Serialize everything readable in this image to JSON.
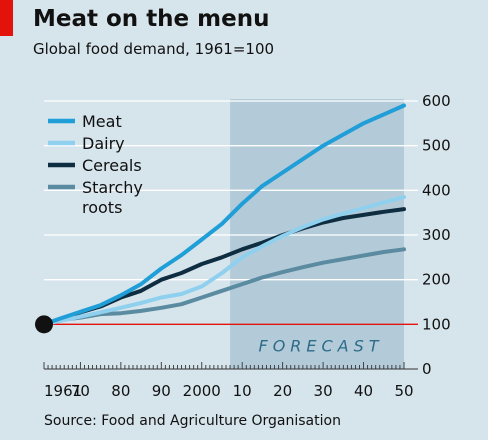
{
  "header": {
    "title": "Meat on the menu",
    "subtitle": "Global food demand, 1961=100"
  },
  "footer": {
    "source": "Source: Food and Agriculture Organisation"
  },
  "colors": {
    "background": "#d6e4ec",
    "forecast_band": "#b3cbd9",
    "baseline": "#e3120b",
    "gridline": "#ffffff",
    "brand_tag": "#e3120b"
  },
  "chart_data": {
    "type": "line",
    "title": "Meat on the menu",
    "subtitle": "Global food demand, 1961=100",
    "xlim": [
      1961,
      2050
    ],
    "ylim": [
      0,
      600
    ],
    "x_tick_labels": [
      {
        "x": 1961,
        "label": "1961"
      },
      {
        "x": 1970,
        "label": "70"
      },
      {
        "x": 1980,
        "label": "80"
      },
      {
        "x": 1990,
        "label": "90"
      },
      {
        "x": 2000,
        "label": "2000"
      },
      {
        "x": 2010,
        "label": "10"
      },
      {
        "x": 2020,
        "label": "20"
      },
      {
        "x": 2030,
        "label": "30"
      },
      {
        "x": 2040,
        "label": "40"
      },
      {
        "x": 2050,
        "label": "50"
      }
    ],
    "y_ticks": [
      0,
      100,
      200,
      300,
      400,
      500,
      600
    ],
    "grid": true,
    "y_axis_side": "right",
    "baseline_value": 100,
    "forecast": {
      "label": "FORECAST",
      "start": 2007,
      "end": 2050
    },
    "legend": {
      "placement": "top-left"
    },
    "series": [
      {
        "name": "Meat",
        "color": "#1f9ed8",
        "points": [
          [
            1961,
            100
          ],
          [
            1965,
            113
          ],
          [
            1970,
            128
          ],
          [
            1975,
            143
          ],
          [
            1980,
            165
          ],
          [
            1985,
            190
          ],
          [
            1990,
            225
          ],
          [
            1995,
            255
          ],
          [
            2000,
            290
          ],
          [
            2005,
            325
          ],
          [
            2010,
            370
          ],
          [
            2015,
            410
          ],
          [
            2020,
            440
          ],
          [
            2025,
            470
          ],
          [
            2030,
            500
          ],
          [
            2035,
            525
          ],
          [
            2040,
            550
          ],
          [
            2045,
            570
          ],
          [
            2050,
            590
          ]
        ]
      },
      {
        "name": "Dairy",
        "color": "#8fd0ef",
        "points": [
          [
            1961,
            100
          ],
          [
            1965,
            108
          ],
          [
            1970,
            117
          ],
          [
            1975,
            127
          ],
          [
            1980,
            137
          ],
          [
            1985,
            148
          ],
          [
            1990,
            160
          ],
          [
            1995,
            168
          ],
          [
            2000,
            185
          ],
          [
            2005,
            215
          ],
          [
            2010,
            250
          ],
          [
            2015,
            275
          ],
          [
            2020,
            298
          ],
          [
            2025,
            318
          ],
          [
            2030,
            335
          ],
          [
            2035,
            348
          ],
          [
            2040,
            360
          ],
          [
            2045,
            373
          ],
          [
            2050,
            385
          ]
        ]
      },
      {
        "name": "Cereals",
        "color": "#0f2d40",
        "points": [
          [
            1961,
            100
          ],
          [
            1965,
            112
          ],
          [
            1970,
            127
          ],
          [
            1975,
            140
          ],
          [
            1980,
            160
          ],
          [
            1985,
            175
          ],
          [
            1990,
            200
          ],
          [
            1995,
            215
          ],
          [
            2000,
            235
          ],
          [
            2005,
            250
          ],
          [
            2010,
            268
          ],
          [
            2015,
            283
          ],
          [
            2020,
            300
          ],
          [
            2025,
            315
          ],
          [
            2030,
            328
          ],
          [
            2035,
            338
          ],
          [
            2040,
            345
          ],
          [
            2045,
            352
          ],
          [
            2050,
            358
          ]
        ]
      },
      {
        "name": "Starchy roots",
        "label_lines": [
          "Starchy",
          "roots"
        ],
        "color": "#5b8ba0",
        "points": [
          [
            1961,
            100
          ],
          [
            1965,
            110
          ],
          [
            1970,
            115
          ],
          [
            1975,
            123
          ],
          [
            1980,
            125
          ],
          [
            1985,
            130
          ],
          [
            1990,
            137
          ],
          [
            1995,
            145
          ],
          [
            2000,
            160
          ],
          [
            2005,
            175
          ],
          [
            2010,
            190
          ],
          [
            2015,
            205
          ],
          [
            2020,
            217
          ],
          [
            2025,
            228
          ],
          [
            2030,
            238
          ],
          [
            2035,
            246
          ],
          [
            2040,
            254
          ],
          [
            2045,
            262
          ],
          [
            2050,
            268
          ]
        ]
      }
    ]
  }
}
